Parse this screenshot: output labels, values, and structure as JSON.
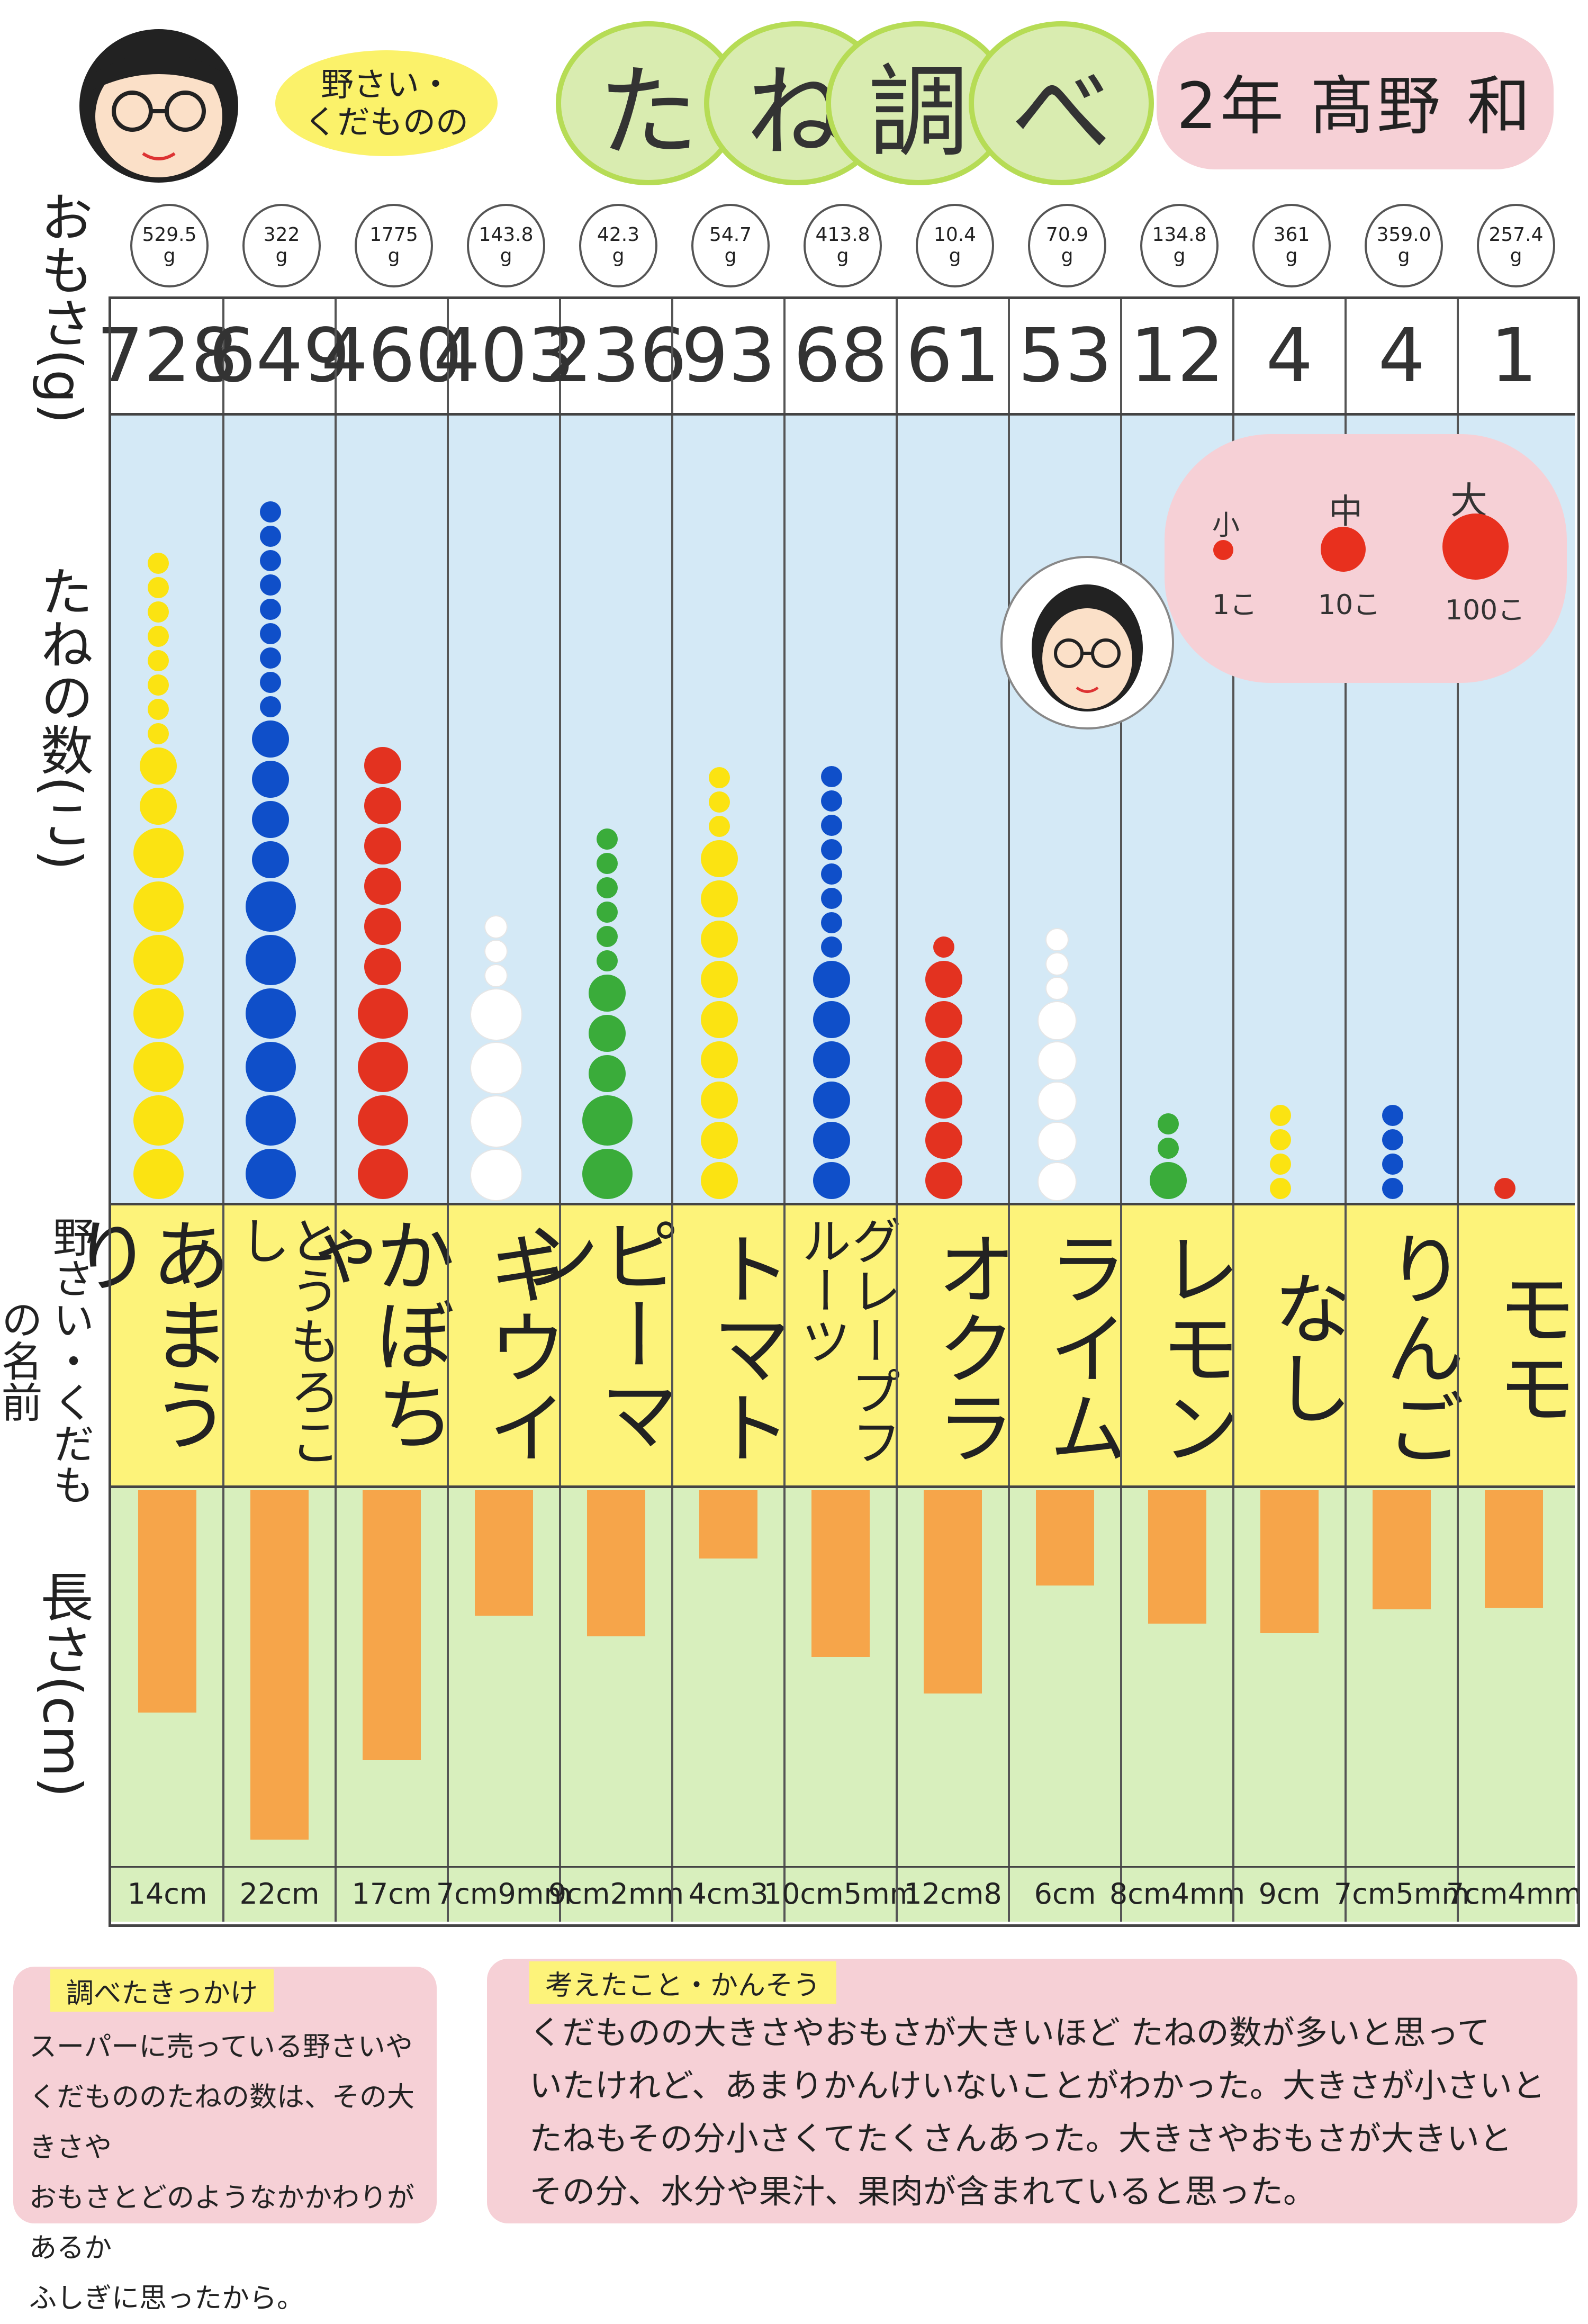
{
  "header": {
    "subtitle_line1": "野さい・",
    "subtitle_line2": "くだものの",
    "title_chars": [
      "た",
      "ね",
      "調",
      "べ"
    ],
    "author": "2年 髙野 和"
  },
  "axis_labels": {
    "weight": "おもさ(g)",
    "seeds": "たねの数(こ)",
    "names": "野さい・くだもの名前",
    "length": "長さ(cm)"
  },
  "legend": {
    "small": {
      "label": "小",
      "value": "1こ"
    },
    "medium": {
      "label": "中",
      "value": "10こ"
    },
    "large": {
      "label": "大",
      "value": "100こ"
    },
    "dot_color": "#e8301e"
  },
  "chart_data": {
    "type": "table",
    "categories": [
      "あまうり",
      "とうもろこし",
      "かぼちゃ",
      "キウイ",
      "ピーマン",
      "トマト",
      "グレープフルーツ",
      "オクラ",
      "ライム",
      "レモン",
      "なし",
      "りんご",
      "モモ"
    ],
    "weights_g": [
      "529.5",
      "322",
      "1775",
      "143.8",
      "42.3",
      "54.7",
      "413.8",
      "10.4",
      "70.9",
      "134.8",
      "361",
      "359.0",
      "257.4"
    ],
    "seed_counts": [
      728,
      649,
      460,
      403,
      236,
      93,
      68,
      61,
      53,
      12,
      4,
      4,
      1
    ],
    "lengths_label": [
      "14cm",
      "22cm",
      "17cm",
      "7cm9mm",
      "9cm2mm",
      "4cm3",
      "10cm5mm",
      "12cm8",
      "6cm",
      "8cm4mm",
      "9cm",
      "7cm5mm",
      "7cm4mm"
    ],
    "lengths_cm": [
      14,
      22,
      17,
      7.9,
      9.2,
      4.3,
      10.5,
      12.8,
      6,
      8.4,
      9,
      7.5,
      7.4
    ],
    "seed_colors": [
      "#fbe312",
      "#0f4fc9",
      "#e33220",
      "#ffffff",
      "#3aac3a",
      "#fbe312",
      "#0f4fc9",
      "#e33220",
      "#ffffff",
      "#3aac3a",
      "#fbe312",
      "#0f4fc9",
      "#e33220"
    ],
    "bar_color": "#f6a54a"
  },
  "reason": {
    "title": "調べたきっかけ",
    "lines": [
      "スーパーに売っている野さいや",
      "くだもののたねの数は、その大きさや",
      "おもさとどのようなかかわりがあるか",
      "ふしぎに思ったから。"
    ]
  },
  "thoughts": {
    "title": "考えたこと・かんそう",
    "lines": [
      "くだものの大きさやおもさが大きいほど たねの数が多いと思って",
      "いたけれど、あまりかんけいないことがわかった。大きさが小さいと",
      "たねもその分小さくてたくさんあった。大きさやおもさが大きいと",
      "その分、水分や果汁、果肉が含まれていると思った。"
    ]
  }
}
